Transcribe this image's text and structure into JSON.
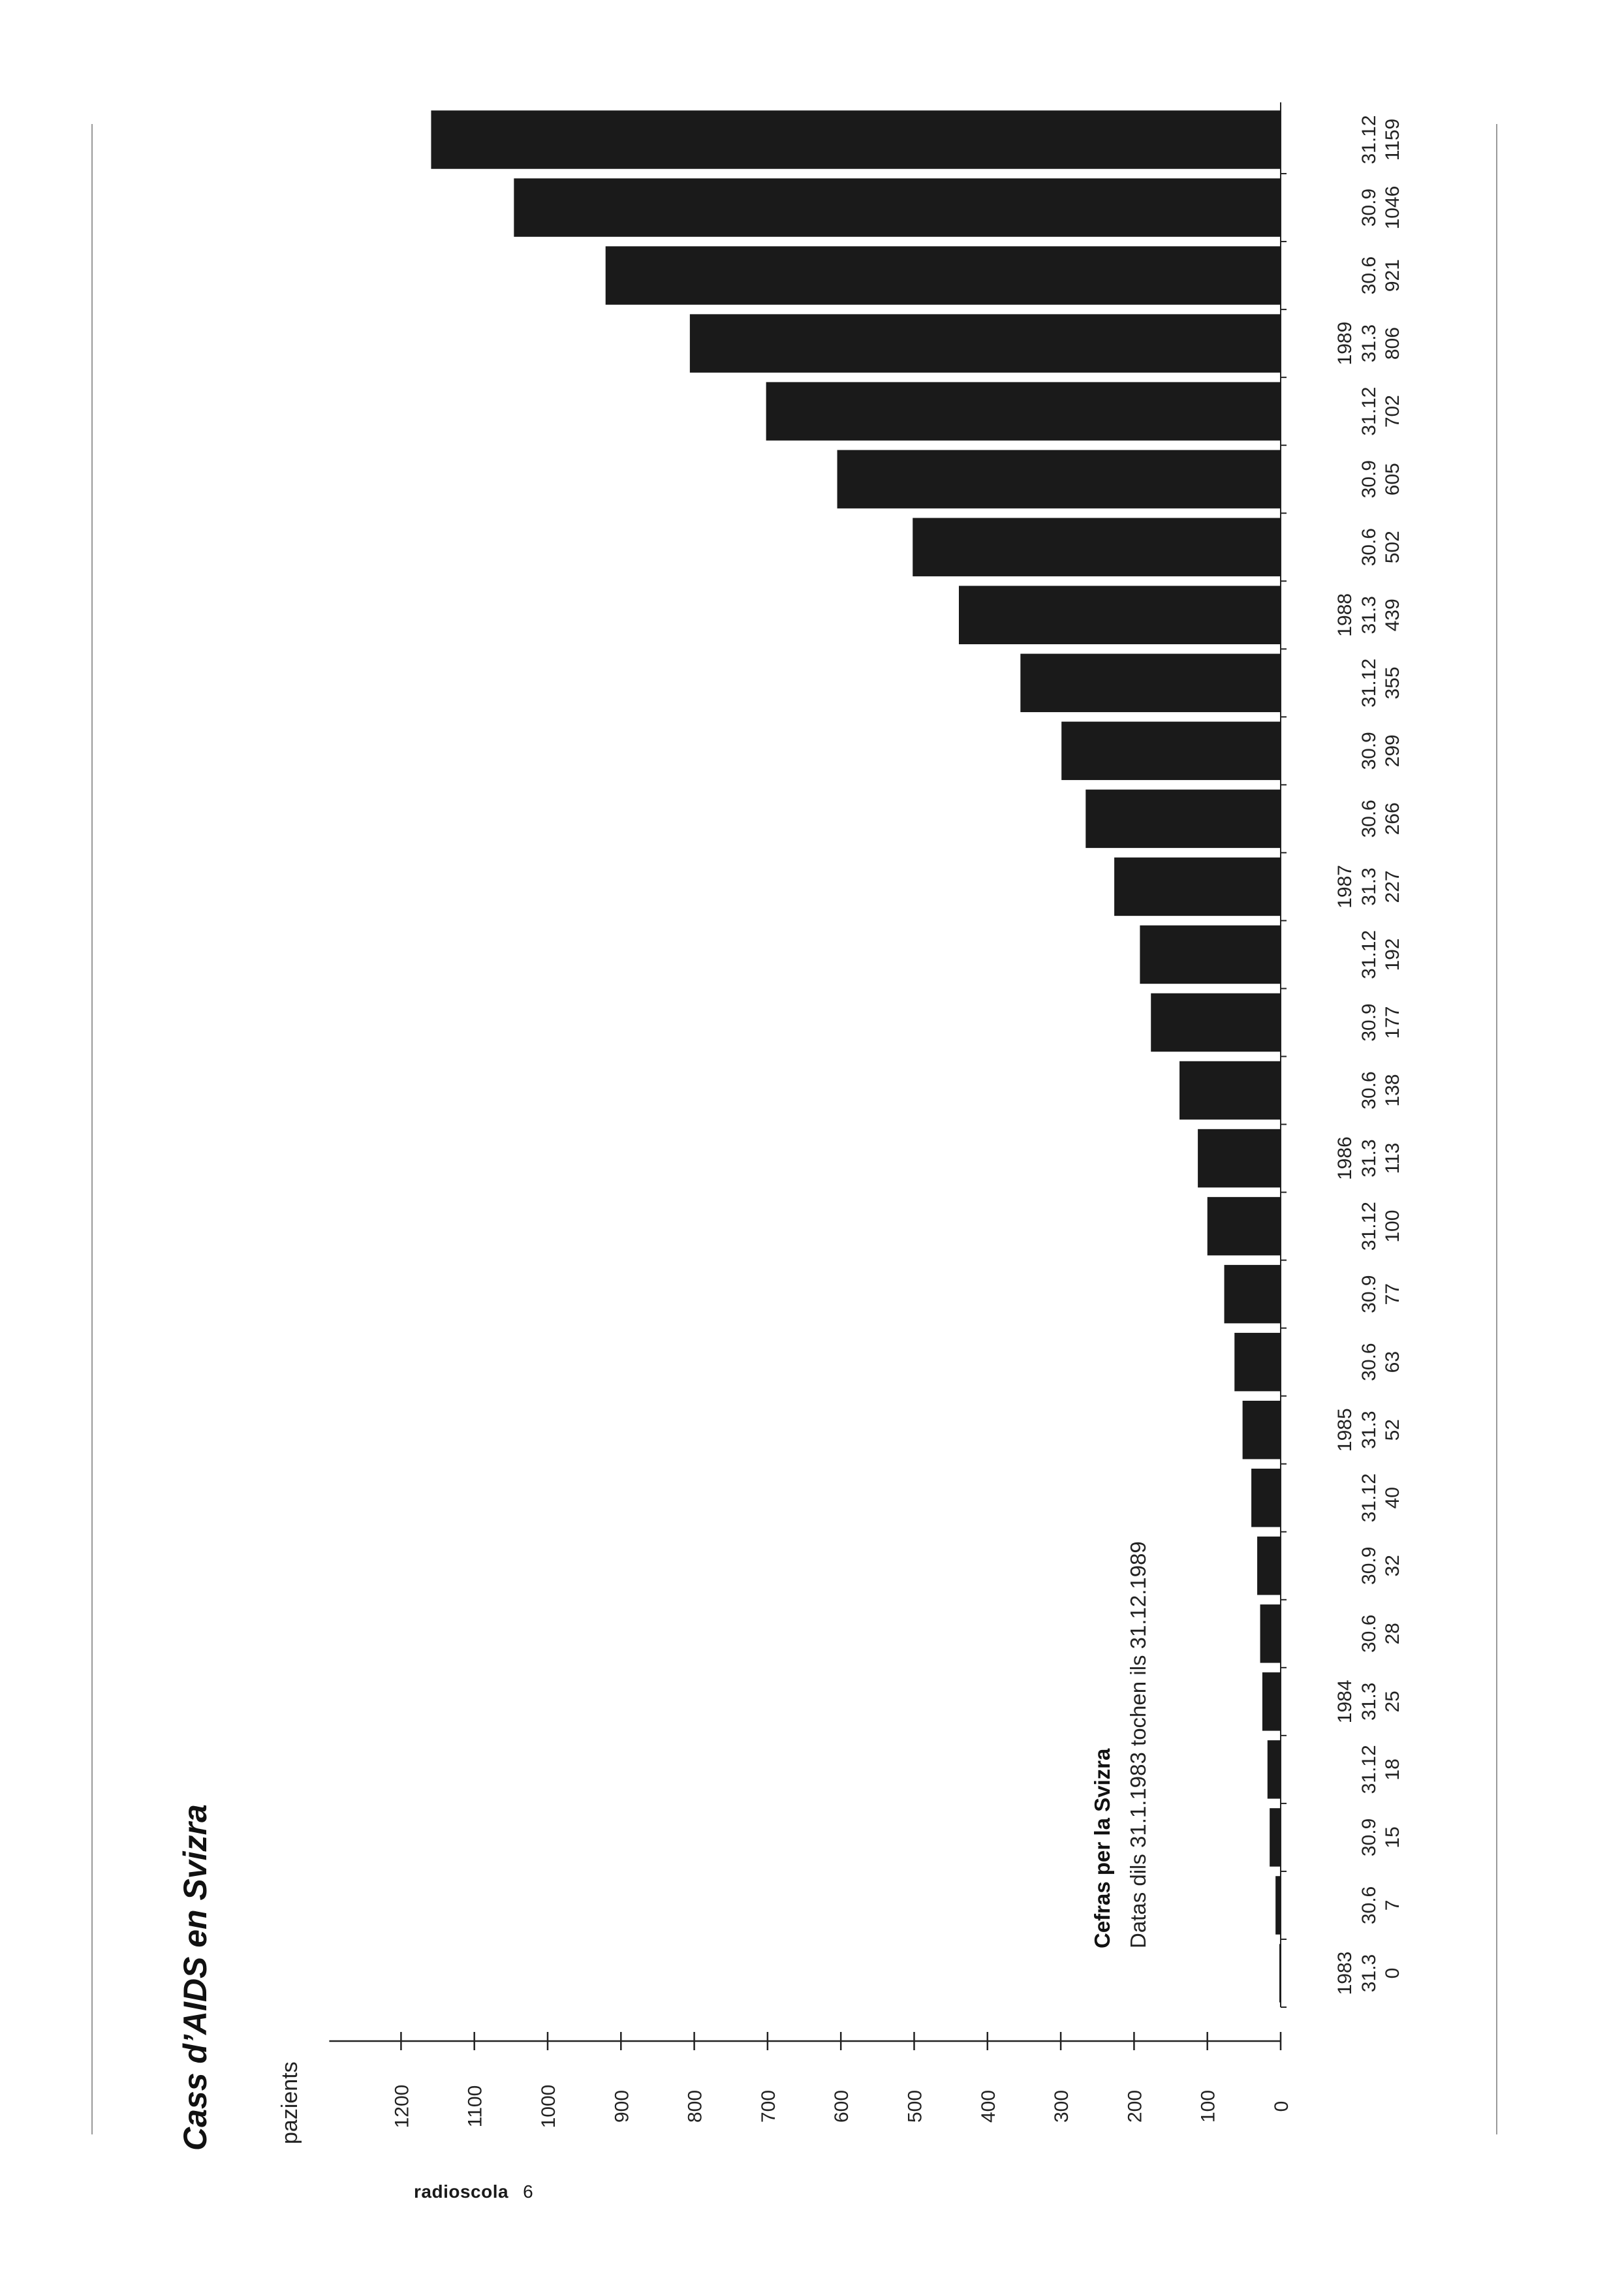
{
  "footer": {
    "brand": "radioscola",
    "page": "6"
  },
  "chart_data": {
    "type": "bar",
    "orientation": "horizontal",
    "title": "Cass d’AIDS en Svizra",
    "ylabel": "pazients",
    "annotation": {
      "heading": "Cefras per la Svizra",
      "text": "Datas dils 31.1.1983 tochen ils 31.12.1989"
    },
    "ylim": [
      0,
      1300
    ],
    "ticks": [
      0,
      100,
      200,
      300,
      400,
      500,
      600,
      700,
      800,
      900,
      1000,
      1100,
      1200
    ],
    "bar_color": "#1a1a1a",
    "categories": [
      {
        "year": "1983",
        "date": "31.3"
      },
      {
        "year": "",
        "date": "30.6"
      },
      {
        "year": "",
        "date": "30.9"
      },
      {
        "year": "",
        "date": "31.12"
      },
      {
        "year": "1984",
        "date": "31.3"
      },
      {
        "year": "",
        "date": "30.6"
      },
      {
        "year": "",
        "date": "30.9"
      },
      {
        "year": "",
        "date": "31.12"
      },
      {
        "year": "1985",
        "date": "31.3"
      },
      {
        "year": "",
        "date": "30.6"
      },
      {
        "year": "",
        "date": "30.9"
      },
      {
        "year": "",
        "date": "31.12"
      },
      {
        "year": "1986",
        "date": "31.3"
      },
      {
        "year": "",
        "date": "30.6"
      },
      {
        "year": "",
        "date": "30.9"
      },
      {
        "year": "",
        "date": "31.12"
      },
      {
        "year": "1987",
        "date": "31.3"
      },
      {
        "year": "",
        "date": "30.6"
      },
      {
        "year": "",
        "date": "30.9"
      },
      {
        "year": "",
        "date": "31.12"
      },
      {
        "year": "1988",
        "date": "31.3"
      },
      {
        "year": "",
        "date": "30.6"
      },
      {
        "year": "",
        "date": "30.9"
      },
      {
        "year": "",
        "date": "31.12"
      },
      {
        "year": "1989",
        "date": "31.3"
      },
      {
        "year": "",
        "date": "30.6"
      },
      {
        "year": "",
        "date": "30.9"
      },
      {
        "year": "",
        "date": "31.12"
      }
    ],
    "values": [
      0,
      7,
      15,
      18,
      25,
      28,
      32,
      40,
      52,
      63,
      77,
      100,
      113,
      138,
      177,
      192,
      227,
      266,
      299,
      355,
      439,
      502,
      605,
      702,
      806,
      921,
      1046,
      1159
    ]
  }
}
